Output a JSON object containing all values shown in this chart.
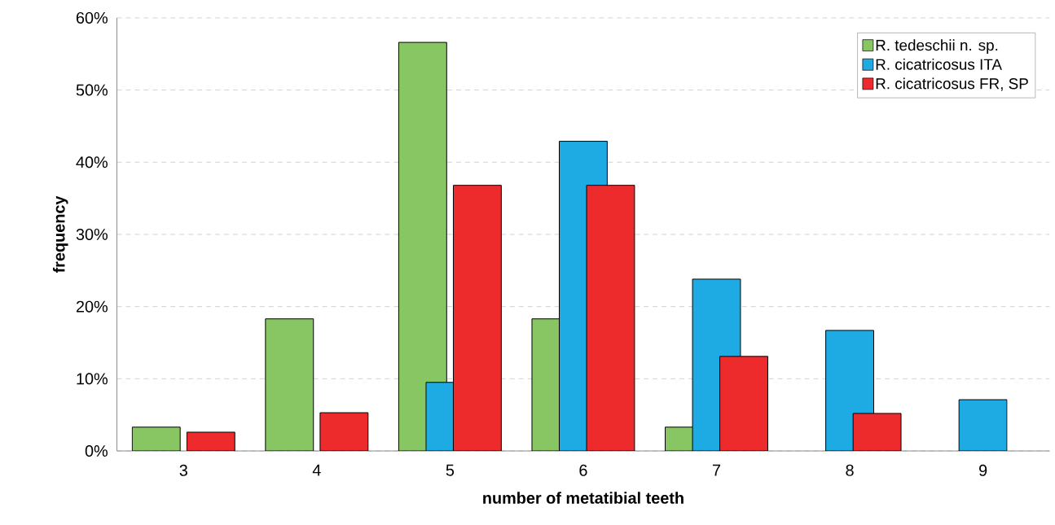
{
  "chart_data": {
    "type": "bar",
    "xlabel": "number of metatibial teeth",
    "ylabel": "frequency",
    "categories": [
      "3",
      "4",
      "5",
      "6",
      "7",
      "8",
      "9"
    ],
    "series": [
      {
        "name": "R. tedeschii n. sp.",
        "color": "#88c664",
        "values": [
          3.3,
          18.3,
          56.6,
          18.3,
          3.3,
          null,
          null
        ]
      },
      {
        "name": "R. cicatricosus ITA",
        "color": "#1eaae2",
        "values": [
          null,
          null,
          9.5,
          42.9,
          23.8,
          16.7,
          7.1
        ]
      },
      {
        "name": "R. cicatricosus FR, SP",
        "color": "#ee2b2c",
        "values": [
          2.6,
          5.3,
          36.8,
          36.8,
          13.1,
          5.2,
          null
        ]
      }
    ],
    "ylim": [
      0,
      60
    ],
    "yticks": [
      {
        "value": 0,
        "label": "0%"
      },
      {
        "value": 10,
        "label": "10%"
      },
      {
        "value": 20,
        "label": "20%"
      },
      {
        "value": 30,
        "label": "30%"
      },
      {
        "value": 40,
        "label": "40%"
      },
      {
        "value": 50,
        "label": "50%"
      },
      {
        "value": 60,
        "label": "60%"
      }
    ],
    "grid": "y",
    "legend": "top right"
  }
}
